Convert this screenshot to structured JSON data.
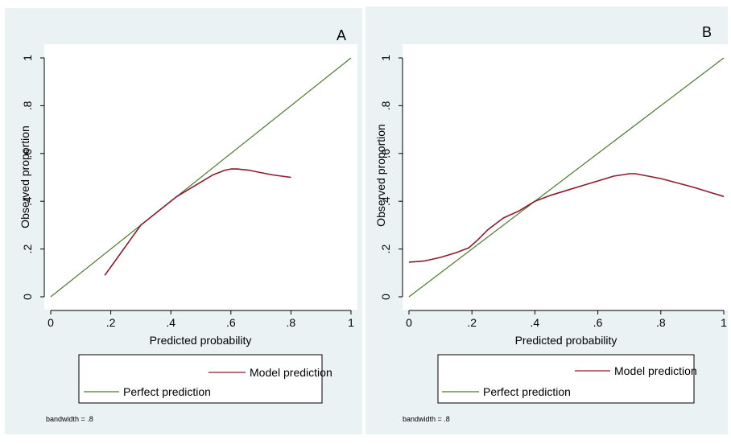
{
  "colors": {
    "panel_background": "#eaf2f3",
    "plot_background": "#ffffff",
    "model_prediction": "#8b1a2b",
    "perfect_prediction": "#4a7a2a"
  },
  "chart_data": [
    {
      "type": "line",
      "panel_label": "A",
      "xlabel": "Predicted probability",
      "ylabel": "Observed proportion",
      "xlim": [
        0,
        1
      ],
      "ylim": [
        0,
        1
      ],
      "x_ticks": [
        0,
        0.2,
        0.4,
        0.6,
        0.8,
        1
      ],
      "x_tick_labels": [
        "0",
        ".2",
        ".4",
        ".6",
        ".8",
        "1"
      ],
      "y_ticks": [
        0,
        0.2,
        0.4,
        0.6,
        0.8,
        1
      ],
      "y_tick_labels": [
        "0",
        ".2",
        ".4",
        ".6",
        ".8",
        "1"
      ],
      "grid": false,
      "legend_position": "bottom",
      "series": [
        {
          "name": "Model prediction",
          "x": [
            0.18,
            0.22,
            0.26,
            0.3,
            0.34,
            0.38,
            0.42,
            0.46,
            0.5,
            0.54,
            0.58,
            0.6,
            0.62,
            0.66,
            0.7,
            0.74,
            0.8
          ],
          "y": [
            0.09,
            0.16,
            0.23,
            0.3,
            0.34,
            0.38,
            0.42,
            0.45,
            0.48,
            0.51,
            0.53,
            0.535,
            0.535,
            0.53,
            0.52,
            0.51,
            0.5
          ]
        },
        {
          "name": "Perfect prediction",
          "x": [
            0,
            1
          ],
          "y": [
            0,
            1
          ]
        }
      ],
      "note": "bandwidth = .8"
    },
    {
      "type": "line",
      "panel_label": "B",
      "xlabel": "Predicted probability",
      "ylabel": "Observed proportion",
      "xlim": [
        0,
        1
      ],
      "ylim": [
        0,
        1
      ],
      "x_ticks": [
        0,
        0.2,
        0.4,
        0.6,
        0.8,
        1
      ],
      "x_tick_labels": [
        "0",
        ".2",
        ".4",
        ".6",
        ".8",
        "1"
      ],
      "y_ticks": [
        0,
        0.2,
        0.4,
        0.6,
        0.8,
        1
      ],
      "y_tick_labels": [
        "0",
        ".2",
        ".4",
        ".6",
        ".8",
        "1"
      ],
      "grid": false,
      "legend_position": "bottom",
      "series": [
        {
          "name": "Model prediction",
          "x": [
            0,
            0.05,
            0.1,
            0.15,
            0.19,
            0.22,
            0.25,
            0.3,
            0.35,
            0.4,
            0.45,
            0.5,
            0.55,
            0.6,
            0.65,
            0.7,
            0.72,
            0.8,
            0.9,
            1
          ],
          "y": [
            0.145,
            0.15,
            0.165,
            0.185,
            0.205,
            0.24,
            0.28,
            0.33,
            0.36,
            0.4,
            0.425,
            0.445,
            0.465,
            0.485,
            0.505,
            0.515,
            0.515,
            0.495,
            0.46,
            0.42
          ]
        },
        {
          "name": "Perfect prediction",
          "x": [
            0,
            1
          ],
          "y": [
            0,
            1
          ]
        }
      ],
      "note": "bandwidth = .8"
    }
  ]
}
